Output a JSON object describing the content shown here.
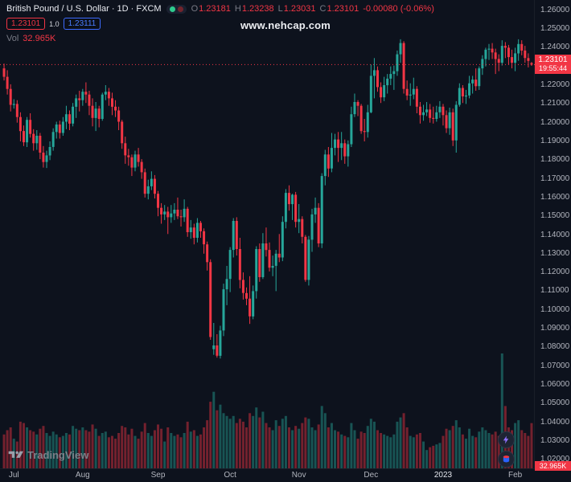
{
  "header": {
    "title": "British Pound / U.S. Dollar · 1D · FXCM",
    "ohlc": {
      "o_label": "O",
      "open": "1.23181",
      "h_label": "H",
      "high": "1.23238",
      "l_label": "L",
      "low": "1.23031",
      "c_label": "C",
      "close": "1.23101",
      "change": "-0.00080 (-0.06%)"
    },
    "trade": {
      "sell": "1.23101",
      "spread": "1.0",
      "buy": "1.23111"
    },
    "volume_row": {
      "label": "Vol",
      "value": "32.965K"
    }
  },
  "watermark": "www.nehcap.com",
  "price_label": {
    "value": "1.23101",
    "countdown": "19:55:44"
  },
  "volume_label": "32.965K",
  "footer": {
    "logo_text": "TradingView"
  },
  "chart_data": {
    "type": "candlestick",
    "title": "British Pound / U.S. Dollar",
    "interval": "1D",
    "exchange": "FXCM",
    "current_price": 1.23101,
    "price_axis": {
      "top_price": 1.2655,
      "bottom_price": 1.0145,
      "ticks": [
        "1.26000",
        "1.25000",
        "1.24000",
        "1.23000",
        "1.22000",
        "1.21000",
        "1.20000",
        "1.19000",
        "1.18000",
        "1.17000",
        "1.16000",
        "1.15000",
        "1.14000",
        "1.13000",
        "1.12000",
        "1.11000",
        "1.10000",
        "1.09000",
        "1.08000",
        "1.07000",
        "1.06000",
        "1.05000",
        "1.04000",
        "1.03000",
        "1.02000"
      ]
    },
    "time_axis": {
      "ticks": [
        {
          "label": "Jul",
          "index": 3
        },
        {
          "label": "Aug",
          "index": 24
        },
        {
          "label": "Sep",
          "index": 47
        },
        {
          "label": "Oct",
          "index": 69
        },
        {
          "label": "Nov",
          "index": 90
        },
        {
          "label": "Dec",
          "index": 112
        },
        {
          "label": "2023",
          "index": 134,
          "highlight": true
        },
        {
          "label": "Feb",
          "index": 156
        }
      ]
    },
    "volume_max": 82,
    "volume_pane_height": 145,
    "colors": {
      "up": "#26a69a",
      "down": "#f23645",
      "vol_up": "rgba(38,166,154,0.45)",
      "vol_down": "rgba(242,54,69,0.45)"
    },
    "candles": [
      [
        1.229,
        1.2315,
        1.2225,
        1.2245,
        25
      ],
      [
        1.2245,
        1.228,
        1.215,
        1.218,
        28
      ],
      [
        1.218,
        1.2205,
        1.206,
        1.2095,
        30
      ],
      [
        1.2095,
        1.2125,
        1.2075,
        1.21,
        22
      ],
      [
        1.21,
        1.212,
        1.2,
        1.203,
        20
      ],
      [
        1.203,
        1.2055,
        1.19,
        1.1955,
        34
      ],
      [
        1.1955,
        1.1985,
        1.1875,
        1.1895,
        33
      ],
      [
        1.1895,
        1.203,
        1.187,
        1.2015,
        30
      ],
      [
        1.2015,
        1.205,
        1.192,
        1.194,
        28
      ],
      [
        1.194,
        1.1965,
        1.185,
        1.189,
        27
      ],
      [
        1.189,
        1.196,
        1.1855,
        1.193,
        25
      ],
      [
        1.193,
        1.1945,
        1.1805,
        1.184,
        29
      ],
      [
        1.184,
        1.1875,
        1.176,
        1.179,
        31
      ],
      [
        1.179,
        1.185,
        1.1758,
        1.1825,
        26
      ],
      [
        1.1825,
        1.19,
        1.18,
        1.187,
        24
      ],
      [
        1.187,
        1.197,
        1.185,
        1.195,
        27
      ],
      [
        1.195,
        1.2005,
        1.1915,
        1.199,
        25
      ],
      [
        1.199,
        1.201,
        1.1915,
        1.1945,
        23
      ],
      [
        1.1945,
        1.203,
        1.193,
        1.2005,
        24
      ],
      [
        1.2005,
        1.209,
        1.1965,
        1.2045,
        26
      ],
      [
        1.2045,
        1.2065,
        1.196,
        1.1995,
        25
      ],
      [
        1.1995,
        1.2105,
        1.198,
        1.2085,
        31
      ],
      [
        1.2085,
        1.215,
        1.2025,
        1.213,
        29
      ],
      [
        1.213,
        1.217,
        1.206,
        1.212,
        28
      ],
      [
        1.212,
        1.218,
        1.209,
        1.2165,
        30
      ],
      [
        1.2165,
        1.2215,
        1.2105,
        1.215,
        28
      ],
      [
        1.215,
        1.217,
        1.204,
        1.209,
        27
      ],
      [
        1.209,
        1.213,
        1.198,
        1.2025,
        32
      ],
      [
        1.2025,
        1.211,
        1.1955,
        1.2075,
        29
      ],
      [
        1.2075,
        1.209,
        1.1975,
        1.202,
        24
      ],
      [
        1.202,
        1.216,
        1.201,
        1.215,
        26
      ],
      [
        1.215,
        1.22,
        1.212,
        1.2165,
        27
      ],
      [
        1.2165,
        1.2185,
        1.209,
        1.213,
        23
      ],
      [
        1.213,
        1.216,
        1.204,
        1.2085,
        24
      ],
      [
        1.2085,
        1.212,
        1.203,
        1.2065,
        22
      ],
      [
        1.2065,
        1.2085,
        1.196,
        1.2005,
        26
      ],
      [
        1.2005,
        1.2015,
        1.186,
        1.189,
        31
      ],
      [
        1.189,
        1.1925,
        1.178,
        1.1825,
        30
      ],
      [
        1.1825,
        1.186,
        1.177,
        1.1815,
        25
      ],
      [
        1.1815,
        1.183,
        1.1715,
        1.176,
        29
      ],
      [
        1.176,
        1.185,
        1.174,
        1.183,
        24
      ],
      [
        1.183,
        1.1865,
        1.1765,
        1.179,
        22
      ],
      [
        1.179,
        1.1805,
        1.17,
        1.1735,
        27
      ],
      [
        1.1735,
        1.1755,
        1.16,
        1.162,
        33
      ],
      [
        1.162,
        1.1695,
        1.159,
        1.166,
        26
      ],
      [
        1.166,
        1.174,
        1.164,
        1.17,
        24
      ],
      [
        1.17,
        1.172,
        1.1595,
        1.162,
        28
      ],
      [
        1.162,
        1.1635,
        1.15,
        1.1545,
        32
      ],
      [
        1.1545,
        1.157,
        1.146,
        1.151,
        29
      ],
      [
        1.151,
        1.156,
        1.148,
        1.1525,
        20
      ],
      [
        1.1525,
        1.155,
        1.1405,
        1.1495,
        30
      ],
      [
        1.1495,
        1.156,
        1.1465,
        1.1515,
        26
      ],
      [
        1.1515,
        1.157,
        1.148,
        1.1535,
        24
      ],
      [
        1.1535,
        1.16,
        1.1485,
        1.15,
        25
      ],
      [
        1.15,
        1.1535,
        1.1445,
        1.1495,
        23
      ],
      [
        1.1495,
        1.159,
        1.147,
        1.154,
        26
      ],
      [
        1.154,
        1.155,
        1.139,
        1.1415,
        34
      ],
      [
        1.1415,
        1.148,
        1.138,
        1.144,
        27
      ],
      [
        1.144,
        1.146,
        1.135,
        1.1385,
        28
      ],
      [
        1.1385,
        1.149,
        1.136,
        1.1465,
        24
      ],
      [
        1.1465,
        1.1475,
        1.1385,
        1.142,
        25
      ],
      [
        1.142,
        1.1435,
        1.13,
        1.135,
        30
      ],
      [
        1.135,
        1.1365,
        1.121,
        1.1255,
        35
      ],
      [
        1.1255,
        1.127,
        1.084,
        1.0855,
        48
      ],
      [
        1.079,
        1.093,
        1.076,
        1.081,
        55
      ],
      [
        1.081,
        1.087,
        1.0745,
        1.0755,
        42
      ],
      [
        1.0755,
        1.0915,
        1.074,
        1.089,
        46
      ],
      [
        1.089,
        1.114,
        1.086,
        1.111,
        40
      ],
      [
        1.111,
        1.1235,
        1.1025,
        1.1165,
        38
      ],
      [
        1.1165,
        1.1335,
        1.1095,
        1.132,
        36
      ],
      [
        1.132,
        1.149,
        1.128,
        1.1475,
        38
      ],
      [
        1.1475,
        1.1495,
        1.129,
        1.1325,
        33
      ],
      [
        1.1325,
        1.1385,
        1.1115,
        1.116,
        36
      ],
      [
        1.116,
        1.12,
        1.1055,
        1.109,
        34
      ],
      [
        1.109,
        1.112,
        1.1025,
        1.106,
        30
      ],
      [
        1.106,
        1.118,
        1.0925,
        1.0965,
        40
      ],
      [
        1.0965,
        1.113,
        1.095,
        1.11,
        38
      ],
      [
        1.11,
        1.134,
        1.106,
        1.1325,
        44
      ],
      [
        1.1325,
        1.1355,
        1.115,
        1.1175,
        37
      ],
      [
        1.1175,
        1.141,
        1.1165,
        1.1355,
        41
      ],
      [
        1.1355,
        1.144,
        1.1285,
        1.132,
        33
      ],
      [
        1.132,
        1.136,
        1.1205,
        1.1225,
        30
      ],
      [
        1.1225,
        1.129,
        1.118,
        1.1235,
        28
      ],
      [
        1.1235,
        1.132,
        1.11,
        1.13,
        35
      ],
      [
        1.13,
        1.1405,
        1.1255,
        1.128,
        31
      ],
      [
        1.128,
        1.15,
        1.126,
        1.147,
        36
      ],
      [
        1.147,
        1.1645,
        1.1435,
        1.1625,
        38
      ],
      [
        1.1625,
        1.1665,
        1.153,
        1.1565,
        30
      ],
      [
        1.1565,
        1.162,
        1.148,
        1.1615,
        28
      ],
      [
        1.1615,
        1.163,
        1.144,
        1.147,
        31
      ],
      [
        1.147,
        1.1565,
        1.141,
        1.1485,
        29
      ],
      [
        1.1485,
        1.15,
        1.1355,
        1.139,
        33
      ],
      [
        1.139,
        1.14,
        1.115,
        1.116,
        37
      ],
      [
        1.116,
        1.1395,
        1.113,
        1.1375,
        36
      ],
      [
        1.1375,
        1.154,
        1.131,
        1.151,
        30
      ],
      [
        1.151,
        1.16,
        1.1465,
        1.1545,
        28
      ],
      [
        1.1545,
        1.157,
        1.1335,
        1.1355,
        32
      ],
      [
        1.1355,
        1.173,
        1.133,
        1.1715,
        45
      ],
      [
        1.1715,
        1.1855,
        1.1665,
        1.183,
        40
      ],
      [
        1.183,
        1.187,
        1.171,
        1.1755,
        30
      ],
      [
        1.1755,
        1.1945,
        1.1735,
        1.1865,
        33
      ],
      [
        1.1865,
        1.194,
        1.1825,
        1.191,
        28
      ],
      [
        1.191,
        1.195,
        1.179,
        1.1865,
        27
      ],
      [
        1.1865,
        1.195,
        1.18,
        1.189,
        25
      ],
      [
        1.189,
        1.191,
        1.178,
        1.182,
        24
      ],
      [
        1.182,
        1.1905,
        1.1765,
        1.1885,
        23
      ],
      [
        1.1885,
        1.2085,
        1.187,
        1.2045,
        33
      ],
      [
        1.2045,
        1.2155,
        1.203,
        1.211,
        28
      ],
      [
        1.211,
        1.212,
        1.2035,
        1.209,
        22
      ],
      [
        1.209,
        1.21,
        1.194,
        1.1955,
        27
      ],
      [
        1.1955,
        1.202,
        1.19,
        1.195,
        26
      ],
      [
        1.195,
        1.2095,
        1.192,
        1.2055,
        31
      ],
      [
        1.2055,
        1.231,
        1.205,
        1.225,
        36
      ],
      [
        1.225,
        1.2345,
        1.213,
        1.228,
        34
      ],
      [
        1.228,
        1.23,
        1.2165,
        1.219,
        28
      ],
      [
        1.219,
        1.2215,
        1.2105,
        1.2135,
        26
      ],
      [
        1.2135,
        1.2245,
        1.2115,
        1.22,
        25
      ],
      [
        1.22,
        1.226,
        1.2155,
        1.2235,
        24
      ],
      [
        1.2235,
        1.23,
        1.22,
        1.226,
        23
      ],
      [
        1.226,
        1.2305,
        1.2175,
        1.2275,
        25
      ],
      [
        1.2275,
        1.2385,
        1.225,
        1.2365,
        34
      ],
      [
        1.2365,
        1.2445,
        1.232,
        1.2425,
        37
      ],
      [
        1.2425,
        1.2435,
        1.2155,
        1.218,
        40
      ],
      [
        1.218,
        1.2225,
        1.212,
        1.2145,
        30
      ],
      [
        1.2145,
        1.221,
        1.209,
        1.215,
        24
      ],
      [
        1.215,
        1.224,
        1.2125,
        1.218,
        23
      ],
      [
        1.218,
        1.2195,
        1.205,
        1.2085,
        25
      ],
      [
        1.2085,
        1.211,
        1.1995,
        1.204,
        26
      ],
      [
        1.204,
        1.2095,
        1.201,
        1.2055,
        20
      ],
      [
        1.2055,
        1.211,
        1.2035,
        1.207,
        14
      ],
      [
        1.207,
        1.21,
        1.2,
        1.2025,
        16
      ],
      [
        1.2025,
        1.2085,
        1.1995,
        1.202,
        17
      ],
      [
        1.202,
        1.209,
        1.2005,
        1.2055,
        18
      ],
      [
        1.2055,
        1.2115,
        1.2025,
        1.2085,
        19
      ],
      [
        1.2085,
        1.21,
        1.1985,
        1.204,
        24
      ],
      [
        1.204,
        1.2065,
        1.1945,
        1.197,
        29
      ],
      [
        1.197,
        1.208,
        1.1935,
        1.2055,
        28
      ],
      [
        1.2055,
        1.2075,
        1.1875,
        1.1905,
        31
      ],
      [
        1.1905,
        1.2115,
        1.184,
        1.2095,
        35
      ],
      [
        1.2095,
        1.221,
        1.2085,
        1.2185,
        30
      ],
      [
        1.2185,
        1.22,
        1.2105,
        1.214,
        25
      ],
      [
        1.214,
        1.2175,
        1.21,
        1.2145,
        22
      ],
      [
        1.2145,
        1.225,
        1.213,
        1.221,
        29
      ],
      [
        1.221,
        1.225,
        1.2155,
        1.223,
        24
      ],
      [
        1.223,
        1.229,
        1.217,
        1.2195,
        23
      ],
      [
        1.2195,
        1.23,
        1.2175,
        1.229,
        27
      ],
      [
        1.229,
        1.236,
        1.2255,
        1.234,
        30
      ],
      [
        1.234,
        1.24,
        1.23,
        1.239,
        28
      ],
      [
        1.239,
        1.242,
        1.2335,
        1.2395,
        26
      ],
      [
        1.2395,
        1.2425,
        1.234,
        1.2375,
        25
      ],
      [
        1.2375,
        1.2395,
        1.226,
        1.234,
        27
      ],
      [
        1.234,
        1.2365,
        1.2275,
        1.232,
        24
      ],
      [
        1.232,
        1.244,
        1.2305,
        1.241,
        82
      ],
      [
        1.241,
        1.243,
        1.2345,
        1.24,
        45
      ],
      [
        1.24,
        1.2415,
        1.231,
        1.235,
        30
      ],
      [
        1.235,
        1.239,
        1.229,
        1.232,
        28
      ],
      [
        1.232,
        1.24,
        1.2275,
        1.237,
        33
      ],
      [
        1.237,
        1.2445,
        1.233,
        1.242,
        35
      ],
      [
        1.242,
        1.244,
        1.236,
        1.2385,
        28
      ],
      [
        1.2385,
        1.241,
        1.232,
        1.2345,
        26
      ],
      [
        1.2345,
        1.237,
        1.2295,
        1.233,
        24
      ],
      [
        1.23181,
        1.23238,
        1.23031,
        1.23101,
        32.965
      ]
    ]
  }
}
